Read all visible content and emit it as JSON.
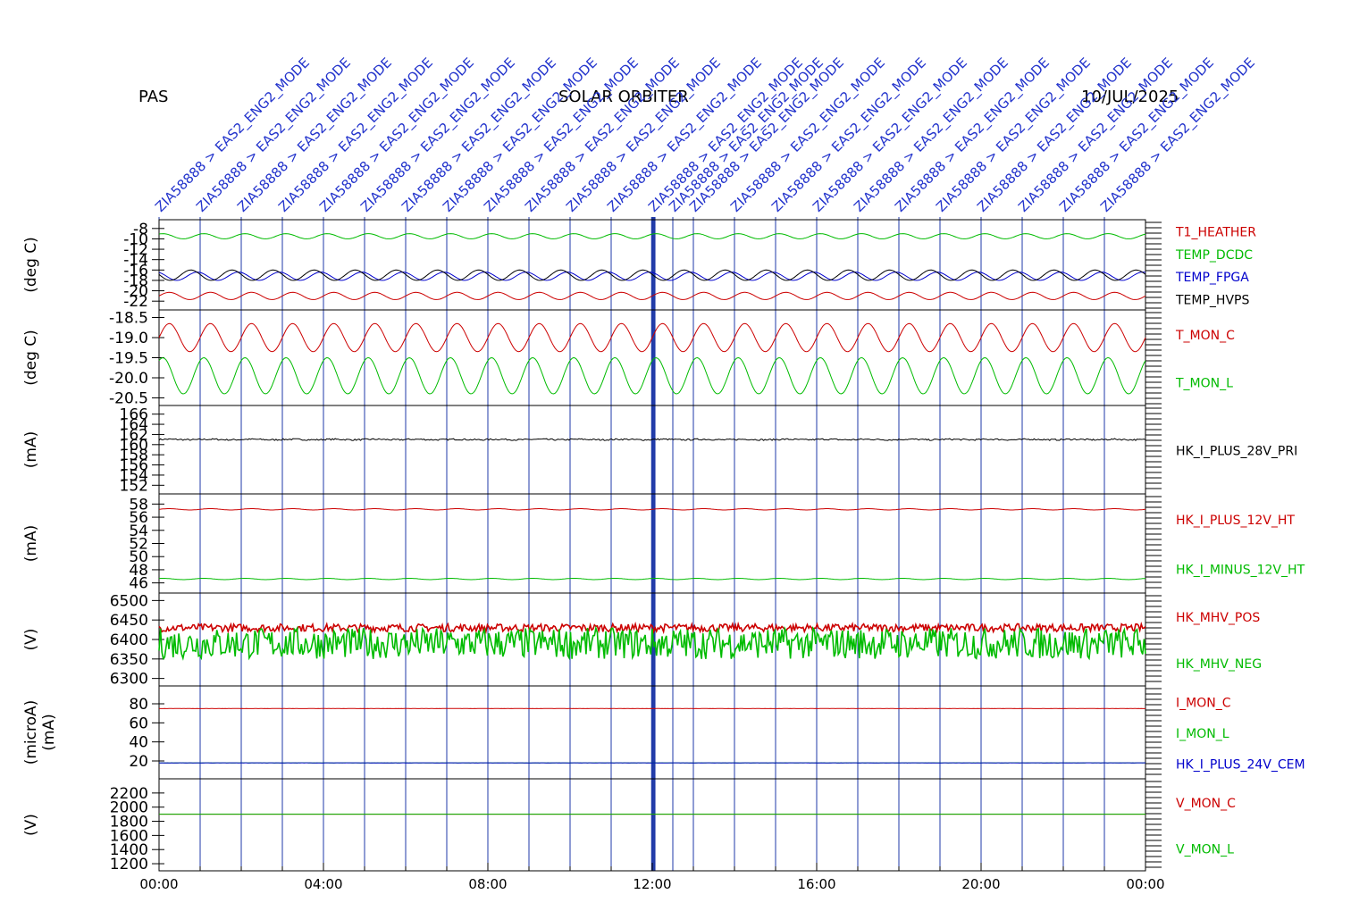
{
  "header": {
    "instrument": "PAS",
    "mission": "SOLAR ORBITER",
    "date": "10/JUL/2025"
  },
  "colors": {
    "red": "#cc0000",
    "green": "#00bb00",
    "blue": "#0000cc",
    "black": "#000000",
    "event_line": "#1f3aa8",
    "event_text": "#2233cc"
  },
  "x_axis": {
    "range_hours": [
      0,
      24
    ],
    "tick_labels": [
      "00:00",
      "04:00",
      "08:00",
      "12:00",
      "16:00",
      "20:00",
      "00:00"
    ],
    "tick_hours": [
      0,
      4,
      8,
      12,
      16,
      20,
      24
    ]
  },
  "events": [
    {
      "label": "ZIA58888 > EAS2_ENG2_MODE",
      "hour": 0.0
    },
    {
      "label": "ZIA58888 > EAS2_ENG2_MODE",
      "hour": 1.0
    },
    {
      "label": "ZIA58888 > EAS2_ENG2_MODE",
      "hour": 2.0
    },
    {
      "label": "ZIA58888 > EAS2_ENG2_MODE",
      "hour": 3.0
    },
    {
      "label": "ZIA58888 > EAS2_ENG2_MODE",
      "hour": 4.0
    },
    {
      "label": "ZIA58888 > EAS2_ENG2_MODE",
      "hour": 5.0
    },
    {
      "label": "ZIA58888 > EAS2_ENG2_MODE",
      "hour": 6.0
    },
    {
      "label": "ZIA58888 > EAS2_ENG2_MODE",
      "hour": 7.0
    },
    {
      "label": "ZIA58888 > EAS2_ENG2_MODE",
      "hour": 8.0
    },
    {
      "label": "ZIA58888 > EAS2_ENG2_MODE",
      "hour": 9.0
    },
    {
      "label": "ZIA58888 > EAS2_ENG2_MODE",
      "hour": 10.0
    },
    {
      "label": "ZIA58888 > EAS2_ENG2_MODE",
      "hour": 11.0
    },
    {
      "label": "ZIA58888 > EAS2_ENG2_MODE",
      "hour": 12.0
    },
    {
      "label": "ZIA58888 > EAS2_ENG2_MODE",
      "hour": 12.5
    },
    {
      "label": "ZIA58888 > EAS2_ENG2_MODE",
      "hour": 13.0
    },
    {
      "label": "ZIA58888 > EAS2_ENG2_MODE",
      "hour": 14.0
    },
    {
      "label": "ZIA58888 > EAS2_ENG2_MODE",
      "hour": 15.0
    },
    {
      "label": "ZIA58888 > EAS2_ENG2_MODE",
      "hour": 16.0
    },
    {
      "label": "ZIA58888 > EAS2_ENG2_MODE",
      "hour": 17.0
    },
    {
      "label": "ZIA58888 > EAS2_ENG2_MODE",
      "hour": 18.0
    },
    {
      "label": "ZIA58888 > EAS2_ENG2_MODE",
      "hour": 19.0
    },
    {
      "label": "ZIA58888 > EAS2_ENG2_MODE",
      "hour": 20.0
    },
    {
      "label": "ZIA58888 > EAS2_ENG2_MODE",
      "hour": 21.0
    },
    {
      "label": "ZIA58888 > EAS2_ENG2_MODE",
      "hour": 22.0
    },
    {
      "label": "ZIA58888 > EAS2_ENG2_MODE",
      "hour": 23.0
    }
  ],
  "chart_data": [
    {
      "type": "line",
      "ylabel": "(deg C)",
      "ylim": [
        -23,
        -7
      ],
      "y_ticks": [
        -8,
        -10,
        -12,
        -14,
        -16,
        -18,
        -20,
        -22
      ],
      "series": [
        {
          "name": "T1_HEATHER",
          "color": "#cc0000",
          "base": -21,
          "amp": 0.7,
          "cycles": 24
        },
        {
          "name": "TEMP_DCDC",
          "color": "#00bb00",
          "base": -9.5,
          "amp": 0.5,
          "cycles": 24
        },
        {
          "name": "TEMP_FPGA",
          "color": "#0000cc",
          "base": -17.2,
          "amp": 0.8,
          "cycles": 24
        },
        {
          "name": "TEMP_HVPS",
          "color": "#000000",
          "base": -17.0,
          "amp": 1.0,
          "cycles": 24
        }
      ]
    },
    {
      "type": "line",
      "ylabel": "(deg C)",
      "ylim": [
        -20.6,
        -18.4
      ],
      "y_ticks": [
        -18.5,
        -19.0,
        -19.5,
        -20.0,
        -20.5
      ],
      "y_tick_labels": [
        "-18.5",
        "-19.0",
        "-19.5",
        "-20.0",
        "-20.5"
      ],
      "series": [
        {
          "name": "T_MON_C",
          "color": "#cc0000",
          "base": -19.0,
          "amp": 0.35,
          "cycles": 24
        },
        {
          "name": "T_MON_L",
          "color": "#00bb00",
          "base": -19.95,
          "amp": 0.45,
          "cycles": 24
        }
      ]
    },
    {
      "type": "line",
      "ylabel": "(mA)",
      "ylim": [
        151,
        167
      ],
      "y_ticks": [
        166,
        164,
        162,
        160,
        158,
        156,
        154,
        152
      ],
      "series": [
        {
          "name": "HK_I_PLUS_28V_PRI",
          "color": "#000000",
          "base": 161.0,
          "amp": 0.05,
          "cycles": 24
        }
      ]
    },
    {
      "type": "line",
      "ylabel": "(mA)",
      "ylim": [
        45,
        59
      ],
      "y_ticks": [
        58,
        56,
        54,
        52,
        50,
        48,
        46
      ],
      "series": [
        {
          "name": "HK_I_PLUS_12V_HT",
          "color": "#cc0000",
          "base": 57.2,
          "amp": 0.1,
          "cycles": 24
        },
        {
          "name": "HK_I_MINUS_12V_HT",
          "color": "#00bb00",
          "base": 46.6,
          "amp": 0.1,
          "cycles": 24
        }
      ]
    },
    {
      "type": "line",
      "ylabel": "(V)",
      "ylim": [
        6290,
        6510
      ],
      "y_ticks": [
        6500,
        6450,
        6400,
        6350,
        6300
      ],
      "series": [
        {
          "name": "HK_MHV_POS",
          "color": "#cc0000",
          "base": 6430,
          "amp": 10,
          "cycles": 0
        },
        {
          "name": "HK_MHV_NEG",
          "color": "#00bb00",
          "base": 6390,
          "amp": 40,
          "cycles": 0
        }
      ]
    },
    {
      "type": "line",
      "ylabel": "(microA)",
      "ylabel2": "(mA)",
      "ylim": [
        5,
        95
      ],
      "y_ticks": [
        80,
        60,
        40,
        20
      ],
      "series": [
        {
          "name": "I_MON_C",
          "color": "#cc0000",
          "base": 75,
          "amp": 0.2,
          "cycles": 0
        },
        {
          "name": "I_MON_L",
          "color": "#00bb00",
          "base": 18,
          "amp": 0.2,
          "cycles": 0
        },
        {
          "name": "HK_I_PLUS_24V_CEM",
          "color": "#0000cc",
          "base": 18,
          "amp": 0.1,
          "cycles": 0
        }
      ]
    },
    {
      "type": "line",
      "ylabel": "(V)",
      "ylim": [
        1150,
        2350
      ],
      "y_ticks": [
        2200,
        2000,
        1800,
        1600,
        1400,
        1200
      ],
      "series": [
        {
          "name": "V_MON_C",
          "color": "#cc0000",
          "base": 1900,
          "amp": 0,
          "cycles": 0
        },
        {
          "name": "V_MON_L",
          "color": "#00bb00",
          "base": 1900,
          "amp": 0,
          "cycles": 0
        }
      ]
    }
  ]
}
